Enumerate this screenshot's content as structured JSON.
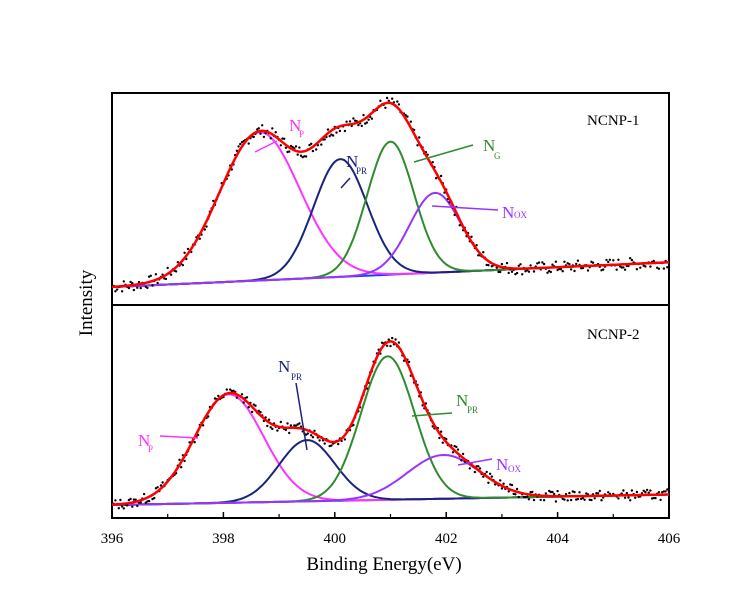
{
  "chart_data": {
    "type": "line",
    "xlabel": "Binding Energy(eV)",
    "ylabel": "Intensity",
    "xlim": [
      396,
      406
    ],
    "x_ticks": [
      "396",
      "398",
      "400",
      "402",
      "404",
      "406"
    ],
    "grid": false,
    "panels": [
      {
        "label": "NCNP-1",
        "peaks": [
          {
            "name": "N",
            "sub": "P",
            "center": 398.65,
            "height": 0.78,
            "width": 0.72,
            "color": "#ff33ff"
          },
          {
            "name": "N",
            "sub": "PR",
            "center": 400.1,
            "height": 0.62,
            "width": 0.48,
            "color": "#1a237e"
          },
          {
            "name": "N",
            "sub": "G",
            "center": 401.0,
            "height": 0.7,
            "width": 0.42,
            "color": "#2e8b2e"
          },
          {
            "name": "N",
            "sub": "OX",
            "center": 401.8,
            "height": 0.42,
            "width": 0.46,
            "color": "#9933ff"
          }
        ],
        "baseline": {
          "x": [
            396,
            406
          ],
          "y": [
            0.0,
            0.13
          ]
        },
        "envelope_color": "#ff0000",
        "raw_color": "#000000"
      },
      {
        "label": "NCNP-2",
        "peaks": [
          {
            "name": "N",
            "sub": "P",
            "center": 398.1,
            "height": 0.62,
            "width": 0.62,
            "color": "#ff33ff"
          },
          {
            "name": "N",
            "sub": "PR",
            "center": 399.5,
            "height": 0.35,
            "width": 0.5,
            "color": "#1a237e"
          },
          {
            "name": "N",
            "sub": "PR",
            "center": 400.95,
            "height": 0.82,
            "width": 0.48,
            "color": "#2e8b2e"
          },
          {
            "name": "N",
            "sub": "OX",
            "center": 401.95,
            "height": 0.25,
            "width": 0.65,
            "color": "#9933ff"
          }
        ],
        "baseline": {
          "x": [
            396,
            406
          ],
          "y": [
            0.0,
            0.06
          ]
        },
        "envelope_color": "#ff0000",
        "raw_color": "#000000"
      }
    ]
  }
}
